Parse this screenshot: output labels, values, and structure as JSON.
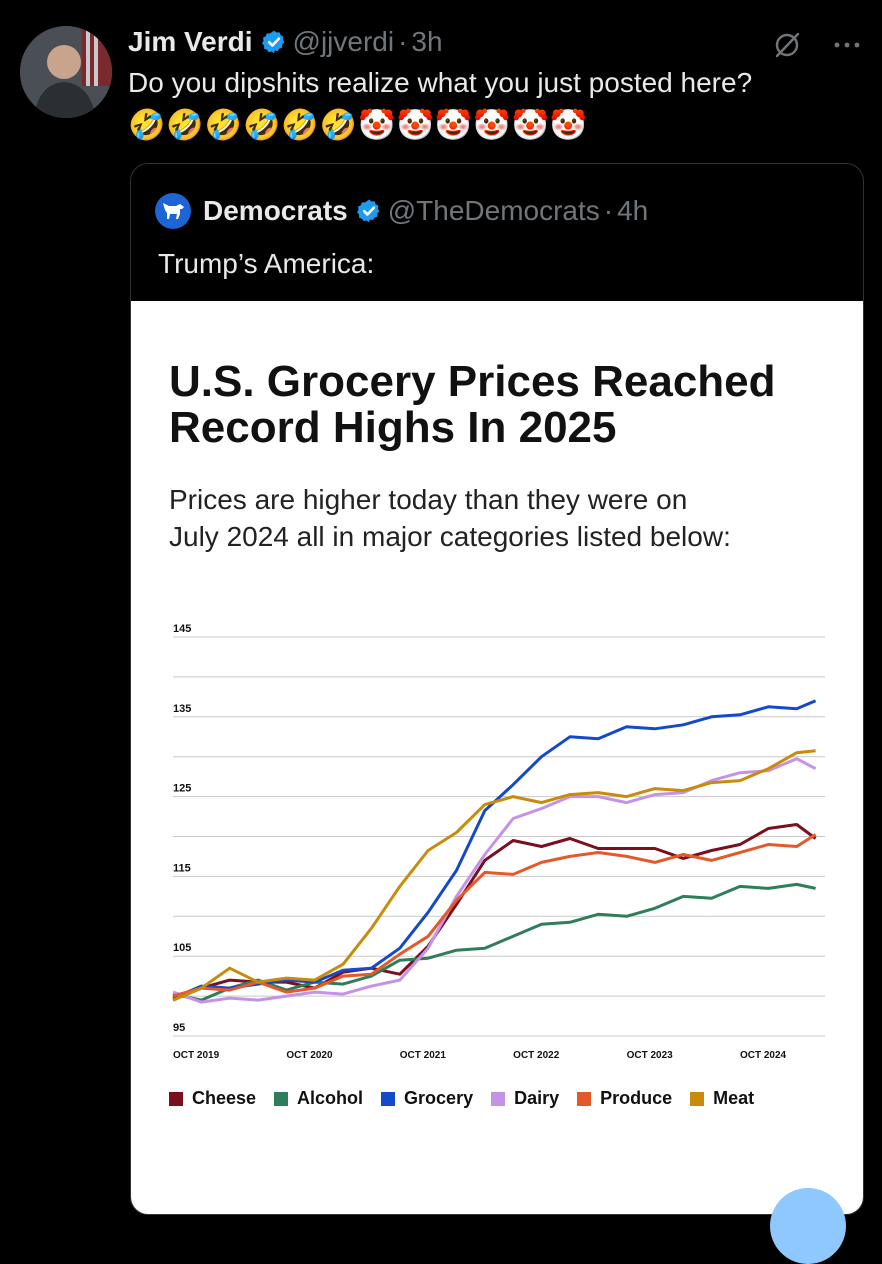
{
  "tweet": {
    "author_name": "Jim Verdi",
    "handle": "@jjverdi",
    "separator": "·",
    "time": "3h",
    "text": "Do you dipshits realize what you just posted here?",
    "emojis": "🤣🤣🤣🤣🤣🤣🤡🤡🤡🤡🤡🤡",
    "icons": {
      "grok": "slashed-circle-icon",
      "more": "more-dots-icon",
      "verified": "verified-badge-icon"
    }
  },
  "quote": {
    "author_name": "Democrats",
    "handle": "@TheDemocrats",
    "separator": "·",
    "time": "4h",
    "text": "Trump’s America:"
  },
  "card": {
    "title_line1": "U.S. Grocery Prices Reached",
    "title_line2": "Record Highs In 2025",
    "subtitle_line1": "Prices are higher today than they were on",
    "subtitle_line2": "July 2024 all in major categories listed below:"
  },
  "colors": {
    "verified_blue": "#1d9bf0",
    "cheese": "#7a0f1d",
    "alcohol": "#2e7d5b",
    "grocery": "#1449c9",
    "dairy": "#c493e8",
    "produce": "#e4592a",
    "meat": "#c98b0b"
  },
  "chart_data": {
    "type": "line",
    "title": "U.S. Grocery Prices Reached Record Highs In 2025",
    "subtitle": "Prices are higher today than they were on July 2024 all in major categories listed below:",
    "xlabel": "",
    "ylabel": "",
    "x": [
      "2019-10",
      "2020-01",
      "2020-04",
      "2020-07",
      "2020-10",
      "2021-01",
      "2021-04",
      "2021-07",
      "2021-10",
      "2022-01",
      "2022-04",
      "2022-07",
      "2022-10",
      "2023-01",
      "2023-04",
      "2023-07",
      "2023-10",
      "2024-01",
      "2024-04",
      "2024-07",
      "2024-10",
      "2025-01",
      "2025-04",
      "2025-06"
    ],
    "xticks": [
      "OCT 2019",
      "OCT 2020",
      "OCT 2021",
      "OCT 2022",
      "OCT 2023",
      "OCT 2024"
    ],
    "yticks": [
      95,
      105,
      115,
      125,
      135,
      145
    ],
    "ylim": [
      95,
      145
    ],
    "grid": true,
    "legend_position": "bottom",
    "series": [
      {
        "name": "Cheese",
        "values": [
          100,
          101,
          101.5,
          102,
          101.5,
          101.5,
          103,
          103,
          103,
          106,
          112,
          117,
          119,
          119,
          119.5,
          119,
          118.5,
          118,
          117.5,
          118,
          119.5,
          121,
          121,
          120
        ]
      },
      {
        "name": "Alcohol",
        "values": [
          100,
          100,
          101,
          101.5,
          101,
          101.5,
          102,
          102.5,
          104,
          105,
          105.5,
          106.5,
          107.5,
          108.5,
          109.5,
          110,
          110.5,
          111,
          112,
          112.5,
          113.5,
          114,
          114,
          113
        ]
      },
      {
        "name": "Grocery",
        "values": [
          100,
          101,
          101.5,
          101.5,
          101.5,
          102,
          103,
          104,
          106,
          110,
          116,
          123,
          127,
          130,
          132,
          132.5,
          133.5,
          134,
          134,
          134.5,
          135.5,
          136,
          136.5,
          137
        ]
      },
      {
        "name": "Dairy",
        "values": [
          100,
          99.5,
          99.5,
          100,
          100,
          100,
          100.5,
          101,
          102.5,
          106,
          112,
          118,
          122,
          124,
          125,
          124.5,
          124.5,
          125,
          126,
          127,
          127.5,
          128.5,
          129.5,
          129
        ]
      },
      {
        "name": "Produce",
        "values": [
          100,
          100.5,
          101,
          101.5,
          101,
          101,
          102,
          103,
          105,
          108,
          112,
          115,
          115.5,
          116.5,
          118,
          118,
          117,
          117,
          117.5,
          117.5,
          118,
          118.5,
          119,
          120
        ]
      },
      {
        "name": "Meat",
        "values": [
          100,
          101,
          103,
          102,
          102,
          102.5,
          104,
          108,
          114,
          118,
          121,
          124,
          124.5,
          124.5,
          125,
          126,
          125,
          125.5,
          126,
          126.5,
          127.5,
          128.5,
          130,
          131
        ]
      }
    ]
  },
  "legend": {
    "items": [
      "Cheese",
      "Alcohol",
      "Grocery",
      "Dairy",
      "Produce",
      "Meat"
    ]
  }
}
